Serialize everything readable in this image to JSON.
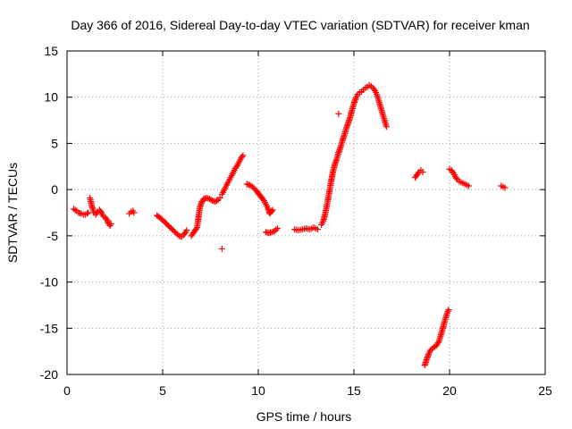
{
  "chart_data": {
    "type": "scatter",
    "title": "Day 366 of 2016, Sidereal Day-to-day VTEC variation (SDTVAR) for receiver kman",
    "xlabel": "GPS time / hours",
    "ylabel": "SDTVAR / TECUs",
    "xlim": [
      0,
      25
    ],
    "ylim": [
      -20,
      15
    ],
    "xticks": [
      0,
      5,
      10,
      15,
      20,
      25
    ],
    "yticks": [
      -20,
      -15,
      -10,
      -5,
      0,
      5,
      10,
      15
    ],
    "grid": true,
    "marker": "+",
    "colors": {
      "series": "#ff0000",
      "grid": "#a0a0a0",
      "axis": "#000000"
    },
    "segments": [
      [
        [
          0.35,
          -2.1
        ],
        [
          0.5,
          -2.3
        ],
        [
          0.6,
          -2.5
        ],
        [
          0.75,
          -2.6
        ],
        [
          0.85,
          -2.7
        ],
        [
          0.95,
          -2.7
        ],
        [
          1.05,
          -2.6
        ],
        [
          1.1,
          -2.5
        ]
      ],
      [
        [
          1.2,
          -0.9
        ],
        [
          1.25,
          -1.3
        ],
        [
          1.3,
          -1.8
        ],
        [
          1.35,
          -2.1
        ],
        [
          1.4,
          -2.5
        ],
        [
          1.5,
          -2.7
        ],
        [
          1.6,
          -2.4
        ],
        [
          1.7,
          -2.2
        ],
        [
          1.8,
          -2.5
        ],
        [
          1.9,
          -2.9
        ]
      ],
      [
        [
          2.0,
          -3.0
        ],
        [
          2.1,
          -3.3
        ],
        [
          2.15,
          -3.6
        ],
        [
          2.25,
          -3.9
        ],
        [
          2.3,
          -3.7
        ]
      ],
      [
        [
          3.25,
          -2.6
        ],
        [
          3.35,
          -2.4
        ],
        [
          3.45,
          -2.3
        ],
        [
          3.5,
          -2.5
        ]
      ],
      [
        [
          4.7,
          -2.8
        ],
        [
          4.9,
          -3.1
        ],
        [
          5.1,
          -3.5
        ],
        [
          5.3,
          -3.9
        ],
        [
          5.5,
          -4.3
        ],
        [
          5.7,
          -4.7
        ],
        [
          5.85,
          -5.0
        ],
        [
          6.0,
          -5.1
        ],
        [
          6.1,
          -4.9
        ],
        [
          6.2,
          -4.6
        ],
        [
          6.25,
          -4.4
        ]
      ],
      [
        [
          6.5,
          -5.0
        ],
        [
          6.6,
          -4.7
        ],
        [
          6.7,
          -4.4
        ],
        [
          6.8,
          -4.1
        ],
        [
          6.85,
          -3.4
        ],
        [
          6.9,
          -2.6
        ],
        [
          6.95,
          -1.9
        ],
        [
          7.05,
          -1.3
        ],
        [
          7.15,
          -1.0
        ],
        [
          7.3,
          -0.9
        ],
        [
          7.45,
          -1.0
        ],
        [
          7.6,
          -1.2
        ],
        [
          7.75,
          -1.3
        ],
        [
          7.9,
          -1.1
        ],
        [
          8.0,
          -0.9
        ]
      ],
      [
        [
          8.1,
          -0.5
        ],
        [
          8.2,
          -0.1
        ],
        [
          8.3,
          0.3
        ],
        [
          8.4,
          0.7
        ],
        [
          8.5,
          1.1
        ],
        [
          8.6,
          1.5
        ],
        [
          8.7,
          1.9
        ],
        [
          8.8,
          2.3
        ],
        [
          8.9,
          2.6
        ],
        [
          9.0,
          3.0
        ],
        [
          9.1,
          3.4
        ],
        [
          9.2,
          3.7
        ]
      ],
      [
        [
          9.4,
          0.6
        ],
        [
          9.55,
          0.5
        ],
        [
          9.7,
          0.3
        ],
        [
          9.85,
          0.0
        ],
        [
          10.0,
          -0.4
        ],
        [
          10.15,
          -0.8
        ],
        [
          10.3,
          -1.2
        ],
        [
          10.4,
          -1.6
        ],
        [
          10.5,
          -2.0
        ],
        [
          10.6,
          -2.6
        ],
        [
          10.75,
          -2.2
        ]
      ],
      [
        [
          10.4,
          -4.6
        ],
        [
          10.55,
          -4.7
        ],
        [
          10.7,
          -4.6
        ],
        [
          10.85,
          -4.5
        ],
        [
          11.0,
          -4.2
        ]
      ],
      [
        [
          11.9,
          -4.3
        ],
        [
          12.1,
          -4.4
        ],
        [
          12.3,
          -4.3
        ],
        [
          12.5,
          -4.2
        ],
        [
          12.7,
          -4.3
        ],
        [
          12.9,
          -4.1
        ],
        [
          13.1,
          -4.3
        ]
      ],
      [
        [
          13.3,
          -3.8
        ],
        [
          13.4,
          -3.4
        ],
        [
          13.5,
          -2.6
        ],
        [
          13.6,
          -1.6
        ],
        [
          13.7,
          -0.4
        ],
        [
          13.8,
          0.8
        ],
        [
          13.9,
          1.9
        ],
        [
          14.0,
          2.7
        ],
        [
          14.1,
          3.3
        ],
        [
          14.2,
          4.0
        ],
        [
          14.3,
          4.6
        ],
        [
          14.4,
          5.3
        ],
        [
          14.5,
          5.9
        ],
        [
          14.6,
          6.6
        ],
        [
          14.7,
          7.2
        ],
        [
          14.8,
          7.8
        ],
        [
          14.9,
          8.6
        ],
        [
          15.0,
          9.3
        ],
        [
          15.1,
          9.9
        ],
        [
          15.2,
          10.3
        ],
        [
          15.3,
          10.5
        ],
        [
          15.4,
          10.6
        ],
        [
          15.5,
          10.8
        ],
        [
          15.6,
          11.0
        ],
        [
          15.7,
          11.1
        ],
        [
          15.8,
          11.3
        ],
        [
          15.9,
          11.2
        ],
        [
          16.0,
          11.0
        ],
        [
          16.1,
          10.7
        ],
        [
          16.2,
          10.3
        ],
        [
          16.3,
          9.6
        ],
        [
          16.4,
          8.9
        ],
        [
          16.5,
          8.2
        ],
        [
          16.6,
          7.5
        ],
        [
          16.7,
          6.8
        ]
      ],
      [
        [
          18.2,
          1.3
        ],
        [
          18.3,
          1.6
        ],
        [
          18.4,
          1.9
        ],
        [
          18.5,
          2.1
        ],
        [
          18.6,
          1.9
        ]
      ],
      [
        [
          18.7,
          -19.0
        ],
        [
          18.8,
          -18.4
        ],
        [
          18.9,
          -17.8
        ],
        [
          19.0,
          -17.4
        ],
        [
          19.15,
          -17.1
        ],
        [
          19.3,
          -16.9
        ],
        [
          19.45,
          -16.4
        ],
        [
          19.55,
          -15.7
        ],
        [
          19.65,
          -15.0
        ],
        [
          19.75,
          -14.2
        ],
        [
          19.85,
          -13.5
        ],
        [
          19.95,
          -13.0
        ]
      ],
      [
        [
          20.0,
          2.2
        ],
        [
          20.1,
          2.1
        ],
        [
          20.2,
          1.8
        ],
        [
          20.3,
          1.4
        ],
        [
          20.4,
          1.1
        ],
        [
          20.5,
          0.9
        ],
        [
          20.6,
          0.8
        ],
        [
          20.7,
          0.7
        ],
        [
          20.8,
          0.6
        ],
        [
          20.9,
          0.5
        ],
        [
          21.0,
          0.4
        ]
      ],
      [
        [
          22.7,
          0.4
        ],
        [
          22.8,
          0.3
        ],
        [
          22.9,
          0.2
        ]
      ]
    ],
    "outliers": [
      [
        8.1,
        -6.4
      ],
      [
        14.2,
        8.2
      ]
    ]
  }
}
